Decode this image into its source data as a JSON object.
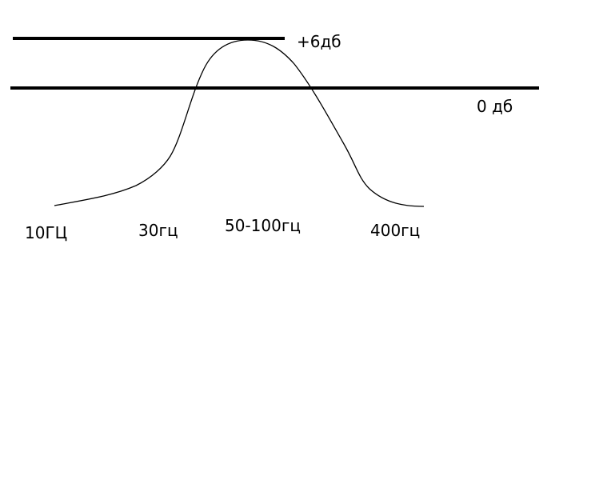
{
  "levels": {
    "upper": "+6дб",
    "reference": "0 дб"
  },
  "frequencies": {
    "f1": "10ГЦ",
    "f2": "30гц",
    "f3": "50-100гц",
    "f4": "400гц"
  },
  "colors": {
    "ink": "#000000",
    "paper": "#ffffff"
  }
}
